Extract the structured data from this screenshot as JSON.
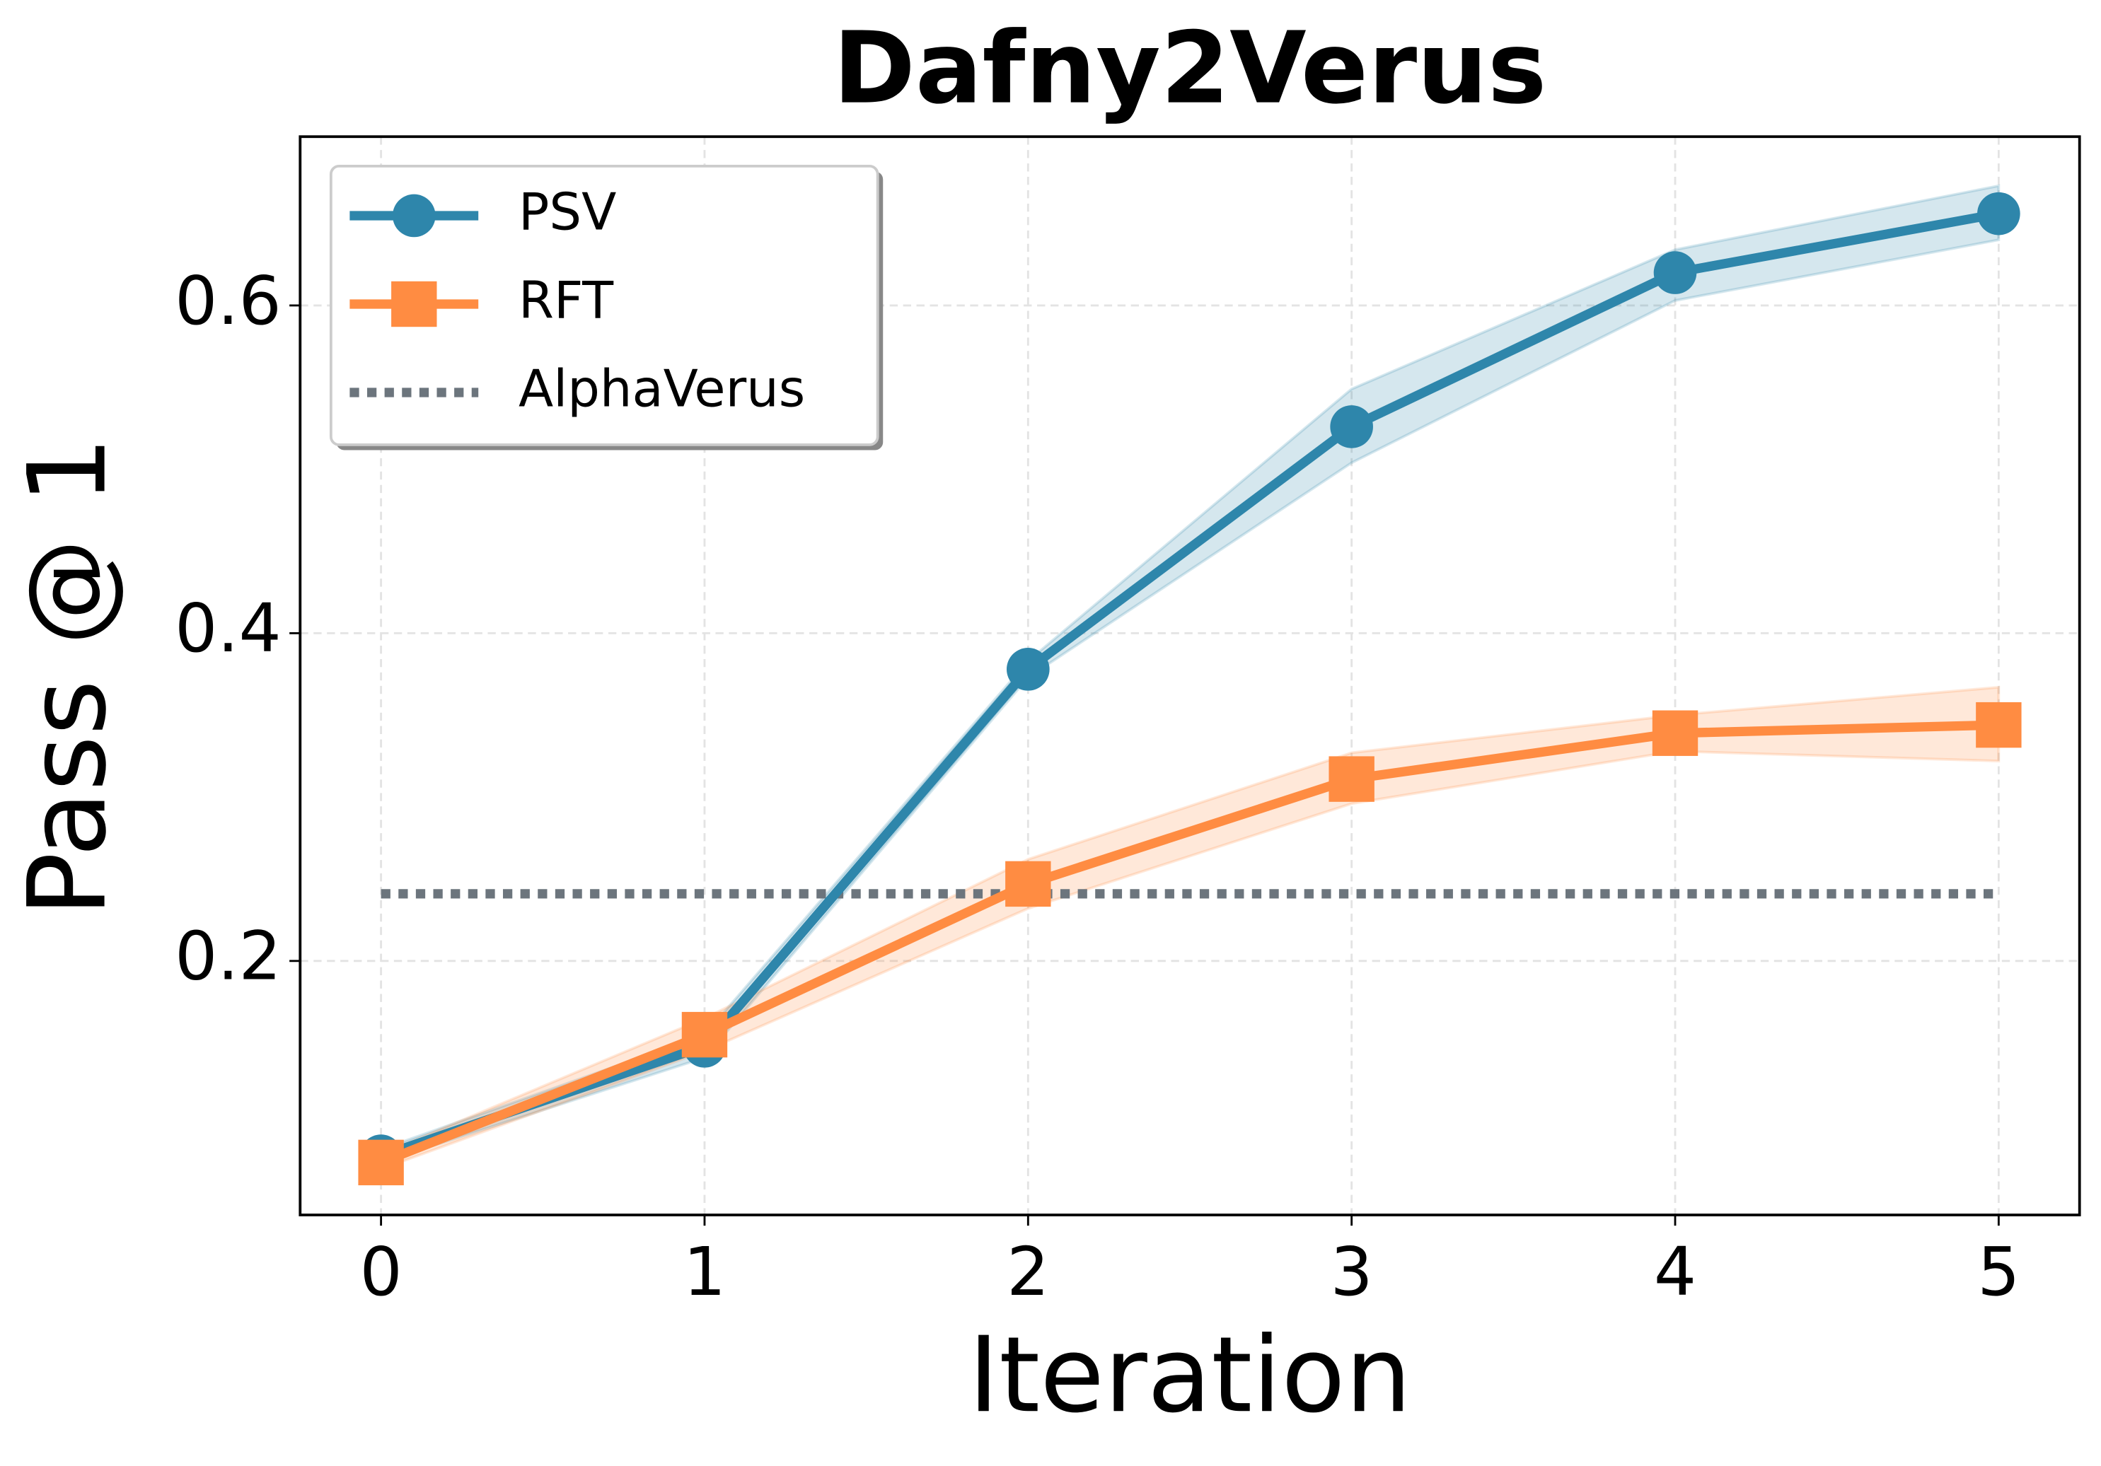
{
  "chart_data": {
    "type": "line",
    "title": "Dafny2Verus",
    "x_label": "Iteration",
    "y_label": "Pass @ 1",
    "x": [
      0,
      1,
      2,
      3,
      4,
      5
    ],
    "xlim": [
      -0.25,
      5.25
    ],
    "xticks": [
      0,
      1,
      2,
      3,
      4,
      5
    ],
    "ylim": [
      0.045,
      0.703
    ],
    "yticks": [
      0.2,
      0.4,
      0.6
    ],
    "grid": true,
    "legend": "upper left",
    "series": [
      {
        "name": "PSV",
        "color": "#2e86ab",
        "marker": "circle",
        "values": [
          0.081,
          0.148,
          0.378,
          0.526,
          0.62,
          0.656
        ],
        "lower": [
          0.077,
          0.141,
          0.373,
          0.504,
          0.603,
          0.64
        ],
        "upper": [
          0.085,
          0.155,
          0.383,
          0.549,
          0.634,
          0.673
        ]
      },
      {
        "name": "RFT",
        "color": "#ff8c42",
        "marker": "square",
        "values": [
          0.077,
          0.155,
          0.247,
          0.311,
          0.339,
          0.344
        ],
        "lower": [
          0.073,
          0.145,
          0.232,
          0.296,
          0.328,
          0.322
        ],
        "upper": [
          0.082,
          0.165,
          0.262,
          0.327,
          0.35,
          0.367
        ]
      },
      {
        "name": "AlphaVerus",
        "color": "#6c757d",
        "style": "dotted",
        "value": 0.241
      }
    ]
  }
}
